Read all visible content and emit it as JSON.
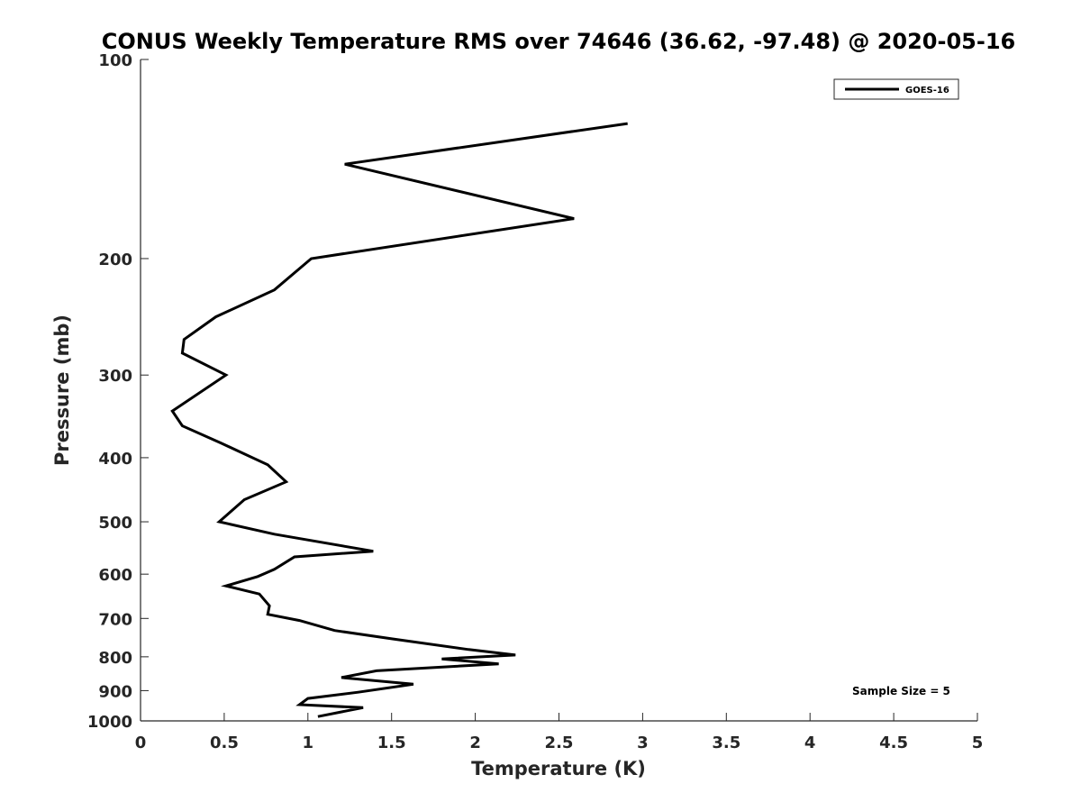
{
  "chart_data": {
    "type": "line",
    "title": "CONUS Weekly Temperature RMS over 74646 (36.62, -97.48) @ 2020-05-16",
    "xlabel": "Temperature (K)",
    "ylabel": "Pressure (mb)",
    "xlim": [
      0,
      5
    ],
    "ylim": [
      1000,
      100
    ],
    "y_scale": "log",
    "y_reversed": true,
    "x_ticks": [
      "0",
      "0.5",
      "1",
      "1.5",
      "2",
      "2.5",
      "3",
      "3.5",
      "4",
      "4.5",
      "5"
    ],
    "x_tick_values": [
      0,
      0.5,
      1,
      1.5,
      2,
      2.5,
      3,
      3.5,
      4,
      4.5,
      5
    ],
    "y_ticks": [
      "100",
      "200",
      "300",
      "400",
      "500",
      "600",
      "700",
      "800",
      "900",
      "1000"
    ],
    "y_tick_values": [
      100,
      200,
      300,
      400,
      500,
      600,
      700,
      800,
      900,
      1000
    ],
    "grid": false,
    "legend_position": "top-right",
    "annotation": "Sample Size = 5",
    "series": [
      {
        "name": "GOES-16",
        "color": "#000000",
        "x": [
          2.91,
          1.22,
          2.59,
          1.02,
          0.8,
          0.45,
          0.26,
          0.25,
          0.51,
          0.19,
          0.25,
          0.48,
          0.76,
          0.87,
          0.62,
          0.47,
          0.8,
          1.39,
          0.92,
          0.8,
          0.7,
          0.51,
          0.71,
          0.77,
          0.76,
          0.95,
          1.16,
          1.51,
          1.96,
          2.24,
          1.8,
          2.14,
          1.41,
          1.2,
          1.63,
          1.3,
          1.0,
          0.95,
          1.33,
          1.06
        ],
        "y": [
          125,
          144,
          174,
          200,
          223,
          245,
          265,
          278,
          300,
          340,
          358,
          380,
          410,
          435,
          463,
          500,
          522,
          554,
          565,
          590,
          605,
          625,
          643,
          670,
          690,
          705,
          730,
          752,
          780,
          795,
          806,
          820,
          840,
          860,
          880,
          905,
          925,
          945,
          955,
          985
        ]
      }
    ]
  }
}
